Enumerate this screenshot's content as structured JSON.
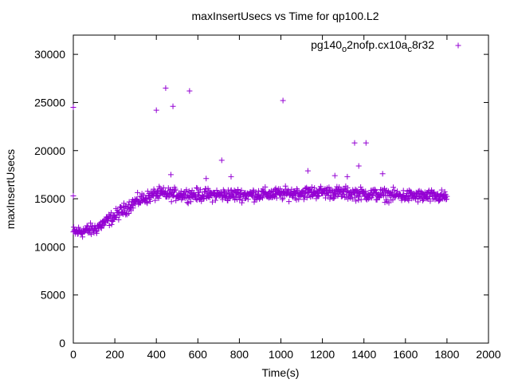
{
  "chart_data": {
    "type": "scatter",
    "title": "maxInsertUsecs vs Time for qp100.L2",
    "xlabel": "Time(s)",
    "ylabel": "maxInsertUsecs",
    "xlim": [
      0,
      2000
    ],
    "ylim": [
      0,
      32000
    ],
    "x_ticks": [
      0,
      200,
      400,
      600,
      800,
      1000,
      1200,
      1400,
      1600,
      1800,
      2000
    ],
    "y_ticks": [
      0,
      5000,
      10000,
      15000,
      20000,
      25000,
      30000
    ],
    "grid": false,
    "legend_position": "top-right",
    "marker": "plus",
    "color": "#9400d3",
    "series": [
      {
        "name_parts": [
          {
            "text": "pg140",
            "sub": false
          },
          {
            "text": "o",
            "sub": true
          },
          {
            "text": "2nofp.cx10a",
            "sub": false
          },
          {
            "text": "c",
            "sub": true
          },
          {
            "text": "8r32",
            "sub": false
          }
        ],
        "trend": [
          [
            0,
            11500
          ],
          [
            100,
            11800
          ],
          [
            200,
            13200
          ],
          [
            300,
            14700
          ],
          [
            400,
            15500
          ],
          [
            600,
            15400
          ],
          [
            800,
            15400
          ],
          [
            1000,
            15500
          ],
          [
            1200,
            15700
          ],
          [
            1400,
            15500
          ],
          [
            1600,
            15300
          ],
          [
            1800,
            15200
          ]
        ],
        "spread": 600,
        "x_range": [
          0,
          1800
        ],
        "dense_count": 850,
        "outliers": [
          {
            "x": 0,
            "y": 24500
          },
          {
            "x": 0,
            "y": 15300
          },
          {
            "x": 400,
            "y": 24200
          },
          {
            "x": 445,
            "y": 26500
          },
          {
            "x": 480,
            "y": 24600
          },
          {
            "x": 560,
            "y": 26200
          },
          {
            "x": 715,
            "y": 19000
          },
          {
            "x": 760,
            "y": 17300
          },
          {
            "x": 1010,
            "y": 25200
          },
          {
            "x": 1130,
            "y": 17900
          },
          {
            "x": 1355,
            "y": 20800
          },
          {
            "x": 1375,
            "y": 18400
          },
          {
            "x": 1410,
            "y": 20800
          },
          {
            "x": 1490,
            "y": 17600
          },
          {
            "x": 1260,
            "y": 17400
          },
          {
            "x": 1320,
            "y": 17300
          },
          {
            "x": 470,
            "y": 17500
          },
          {
            "x": 640,
            "y": 17100
          }
        ]
      }
    ]
  }
}
